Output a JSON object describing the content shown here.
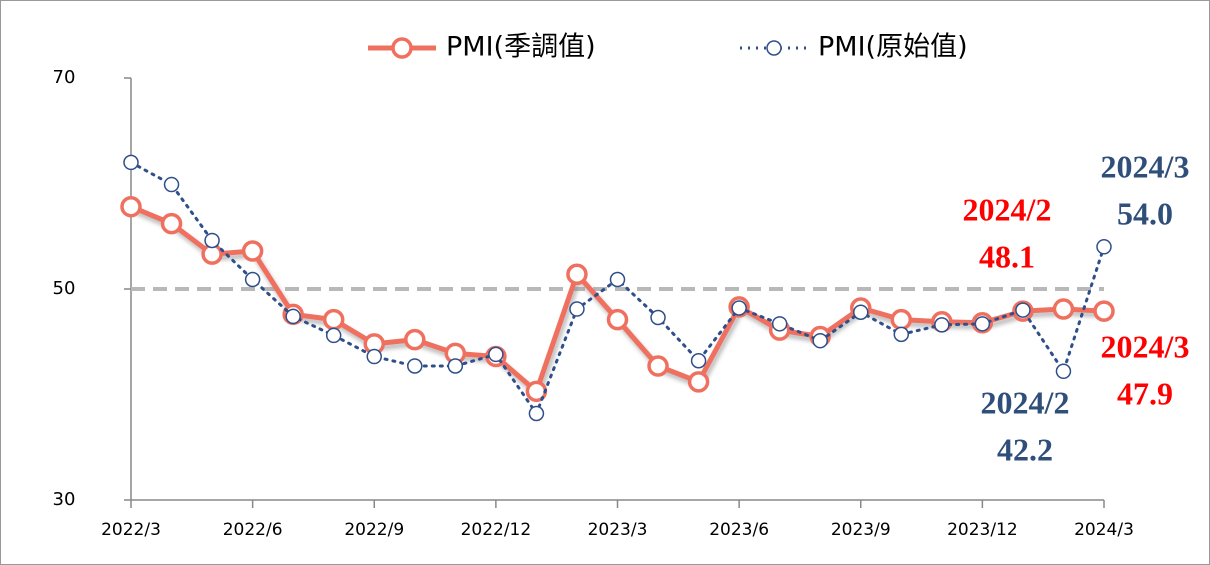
{
  "chart_data": {
    "type": "line",
    "categories": [
      "2022/3",
      null,
      null,
      "2022/6",
      null,
      null,
      "2022/9",
      null,
      null,
      "2022/12",
      null,
      null,
      "2023/3",
      null,
      null,
      "2023/6",
      null,
      null,
      "2023/9",
      null,
      null,
      "2023/12",
      null,
      null,
      "2024/3"
    ],
    "series": [
      {
        "name": "PMI(季調值)",
        "color": "#f07060",
        "values": [
          57.8,
          56.2,
          53.3,
          53.6,
          47.6,
          47.1,
          44.8,
          45.2,
          43.9,
          43.6,
          40.3,
          51.4,
          47.1,
          42.7,
          41.2,
          48.3,
          46.1,
          45.5,
          48.2,
          47.1,
          46.9,
          46.8,
          47.9,
          48.1,
          47.9
        ]
      },
      {
        "name": "PMI(原始值)",
        "color": "#2f4f8a",
        "values": [
          62.0,
          59.9,
          54.6,
          50.9,
          47.4,
          45.6,
          43.6,
          42.7,
          42.7,
          43.8,
          38.2,
          48.1,
          50.9,
          47.3,
          43.2,
          48.2,
          46.7,
          45.1,
          47.8,
          45.7,
          46.6,
          46.7,
          48.0,
          42.2,
          54.0
        ]
      }
    ],
    "ylim": [
      30,
      70
    ],
    "yticks": [
      30,
      50,
      70
    ],
    "reference_line": 50,
    "annotations": [
      {
        "date": "2024/2",
        "label": "48.1",
        "color": "#ff0000"
      },
      {
        "date": "2024/3",
        "label": "54.0",
        "color": "#2f4f7a"
      },
      {
        "date": "2024/3",
        "label": "47.9",
        "color": "#ff0000"
      },
      {
        "date": "2024/2",
        "label": "42.2",
        "color": "#2f4f7a"
      }
    ]
  }
}
